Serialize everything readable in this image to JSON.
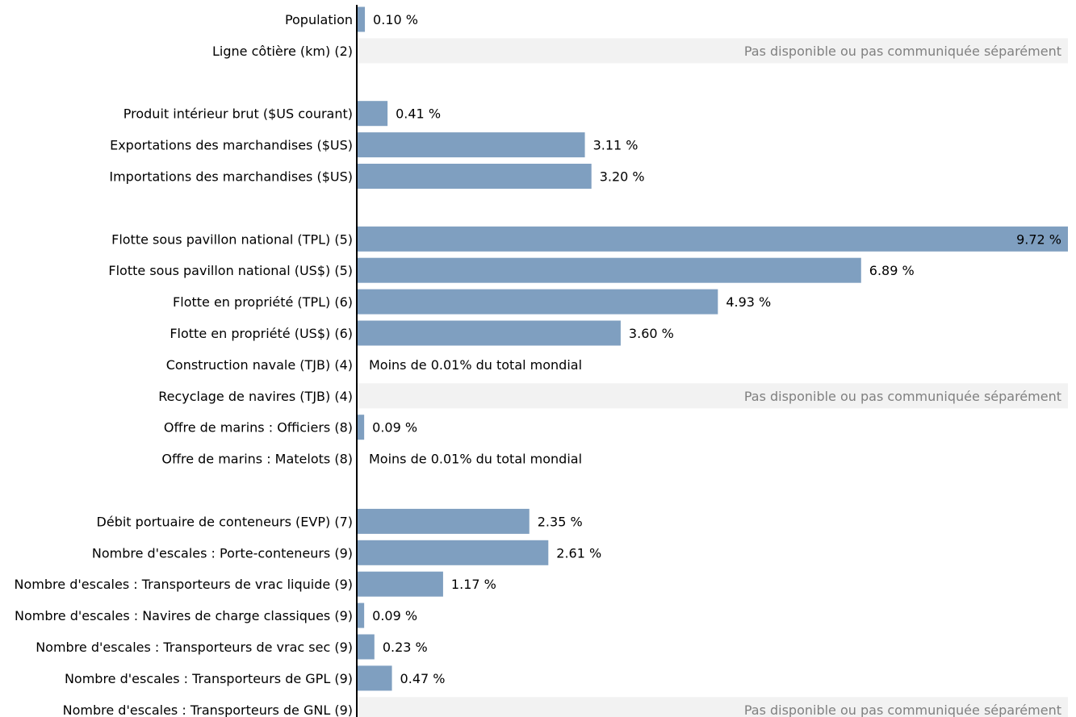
{
  "chart_data": {
    "type": "bar",
    "orientation": "horizontal",
    "xlim": [
      0,
      9.72
    ],
    "grid": false,
    "legend": "none",
    "colors": {
      "bar": "#7f9fc0",
      "na_band": "#f2f2f2",
      "na_text": "#808080",
      "axis": "#000000"
    },
    "rows": [
      {
        "label": "Population",
        "value": 0.1,
        "display": "0.10 %",
        "status": "value"
      },
      {
        "label": "Ligne côtière (km) (2)",
        "value": null,
        "display": "Pas disponible ou pas communiquée séparément",
        "status": "na"
      },
      {
        "label": "",
        "value": null,
        "display": "",
        "status": "gap"
      },
      {
        "label": "Produit intérieur brut ($US courant)",
        "value": 0.41,
        "display": "0.41 %",
        "status": "value"
      },
      {
        "label": "Exportations des marchandises ($US)",
        "value": 3.11,
        "display": "3.11 %",
        "status": "value"
      },
      {
        "label": "Importations des marchandises ($US)",
        "value": 3.2,
        "display": "3.20 %",
        "status": "value"
      },
      {
        "label": "",
        "value": null,
        "display": "",
        "status": "gap"
      },
      {
        "label": "Flotte sous pavillon national (TPL) (5)",
        "value": 9.72,
        "display": "9.72 %",
        "status": "value"
      },
      {
        "label": "Flotte sous pavillon national (US$) (5)",
        "value": 6.89,
        "display": "6.89 %",
        "status": "value"
      },
      {
        "label": "Flotte en propriété (TPL) (6)",
        "value": 4.93,
        "display": "4.93 %",
        "status": "value"
      },
      {
        "label": "Flotte en propriété (US$) (6)",
        "value": 3.6,
        "display": "3.60 %",
        "status": "value"
      },
      {
        "label": "Construction navale (TJB) (4)",
        "value": null,
        "display": "Moins de 0.01% du total mondial",
        "status": "less"
      },
      {
        "label": "Recyclage de navires (TJB) (4)",
        "value": null,
        "display": "Pas disponible ou pas communiquée séparément",
        "status": "na"
      },
      {
        "label": "Offre de marins : Officiers (8)",
        "value": 0.09,
        "display": "0.09 %",
        "status": "value"
      },
      {
        "label": "Offre de marins : Matelots (8)",
        "value": null,
        "display": "Moins de 0.01% du total mondial",
        "status": "less"
      },
      {
        "label": "",
        "value": null,
        "display": "",
        "status": "gap"
      },
      {
        "label": "Débit portuaire de conteneurs (EVP) (7)",
        "value": 2.35,
        "display": "2.35 %",
        "status": "value"
      },
      {
        "label": "Nombre d'escales : Porte-conteneurs (9)",
        "value": 2.61,
        "display": "2.61 %",
        "status": "value"
      },
      {
        "label": "Nombre d'escales : Transporteurs de vrac liquide (9)",
        "value": 1.17,
        "display": "1.17 %",
        "status": "value"
      },
      {
        "label": "Nombre d'escales : Navires de charge classiques (9)",
        "value": 0.09,
        "display": "0.09 %",
        "status": "value"
      },
      {
        "label": "Nombre d'escales : Transporteurs de vrac sec (9)",
        "value": 0.23,
        "display": "0.23 %",
        "status": "value"
      },
      {
        "label": "Nombre d'escales : Transporteurs de GPL (9)",
        "value": 0.47,
        "display": "0.47 %",
        "status": "value"
      },
      {
        "label": "Nombre d'escales : Transporteurs de GNL (9)",
        "value": null,
        "display": "Pas disponible ou pas communiquée séparément",
        "status": "na"
      }
    ]
  }
}
